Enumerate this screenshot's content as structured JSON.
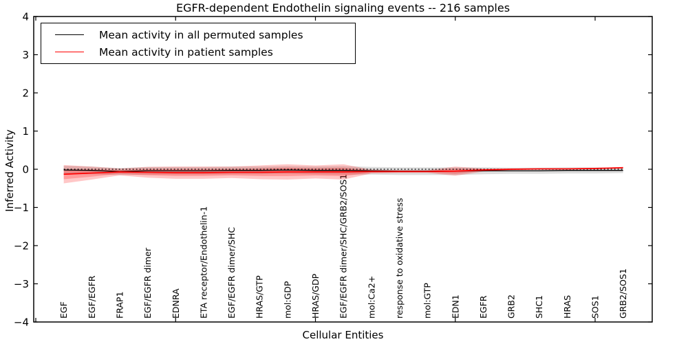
{
  "window": {
    "title": "EGFR-dependent Endothelin signaling events -- 216 samples"
  },
  "chart_data": {
    "type": "line",
    "title": "EGFR-dependent Endothelin signaling events -- 216 samples",
    "sample_count": "216",
    "xlabel": "Cellular Entities",
    "ylabel": "Inferred Activity",
    "ylim": [
      -4,
      4
    ],
    "ytick_labels": [
      "4",
      "3",
      "2",
      "1",
      "0",
      "−1",
      "−2",
      "−3",
      "−4"
    ],
    "ytick_values": [
      4,
      3,
      2,
      1,
      0,
      -1,
      -2,
      -3,
      -4
    ],
    "xtick_values": [
      0,
      5,
      10,
      15,
      20
    ],
    "grid": false,
    "legend_position": "upper left",
    "categories": [
      "EGF",
      "EGF/EGFR",
      "FRAP1",
      "EGF/EGFR dimer",
      "EDNRA",
      "ETA receptor/Endothelin-1",
      "EGF/EGFR dimer/SHC",
      "HRAS/GTP",
      "mol:GDP",
      "HRAS/GDP",
      "EGF/EGFR dimer/SHC/GRB2/SOS1",
      "mol:Ca2+",
      "response to oxidative stress",
      "mol:GTP",
      "EDN1",
      "EGFR",
      "GRB2",
      "SHC1",
      "HRAS",
      "SOS1",
      "GRB2/SOS1"
    ],
    "series": [
      {
        "name": "Mean activity in all permuted samples",
        "color": "#000000",
        "line_style": "solid",
        "band_color": "rgba(128,128,128,0.28)",
        "values": [
          -0.02,
          -0.03,
          -0.06,
          -0.04,
          -0.04,
          -0.04,
          -0.03,
          -0.03,
          -0.02,
          -0.03,
          -0.03,
          -0.04,
          -0.05,
          -0.05,
          -0.05,
          -0.04,
          -0.04,
          -0.04,
          -0.03,
          -0.03,
          -0.03
        ],
        "band_halfwidth": [
          0.11,
          0.1,
          0.09,
          0.1,
          0.1,
          0.1,
          0.1,
          0.1,
          0.1,
          0.1,
          0.11,
          0.1,
          0.1,
          0.1,
          0.1,
          0.09,
          0.08,
          0.08,
          0.08,
          0.08,
          0.07
        ]
      },
      {
        "name": "Mean activity in patient samples",
        "color": "#ff0000",
        "line_style": "solid",
        "band_color": "rgba(255,0,0,0.22)",
        "values": [
          -0.13,
          -0.1,
          -0.07,
          -0.08,
          -0.09,
          -0.09,
          -0.08,
          -0.08,
          -0.07,
          -0.07,
          -0.07,
          -0.06,
          -0.06,
          -0.06,
          -0.05,
          -0.02,
          0.0,
          0.01,
          0.01,
          0.02,
          0.04
        ],
        "band_halfwidth": [
          0.24,
          0.17,
          0.09,
          0.14,
          0.16,
          0.16,
          0.15,
          0.18,
          0.2,
          0.17,
          0.2,
          0.05,
          0.035,
          0.035,
          0.12,
          0.04,
          0.02,
          0.015,
          0.015,
          0.015,
          0.02
        ]
      }
    ],
    "zero_line": {
      "style": "dotted",
      "color": "#000000"
    }
  }
}
